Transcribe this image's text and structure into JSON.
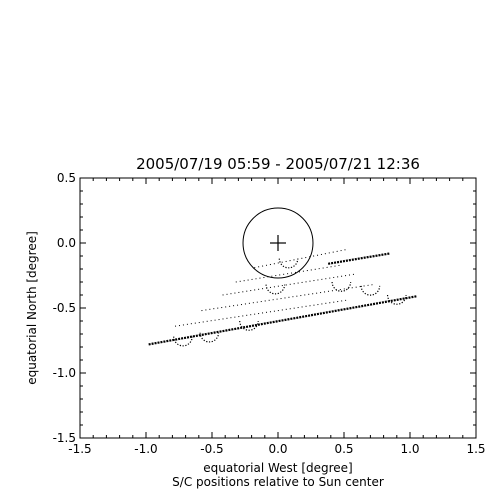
{
  "chart_data": {
    "type": "scatter",
    "title": "2005/07/19 05:59 - 2005/07/21 12:36",
    "xlabel": "equatorial West [degree]",
    "ylabel": "equatorial North [degree]",
    "caption": "S/C positions relative to Sun center",
    "xlim": [
      -1.5,
      1.5
    ],
    "ylim": [
      -1.5,
      0.5
    ],
    "xticks": [
      "-1.5",
      "-1.0",
      "-0.5",
      "0.0",
      "0.5",
      "1.0",
      "1.5"
    ],
    "yticks": [
      "-1.5",
      "-1.0",
      "-0.5",
      "0.0",
      "0.5"
    ],
    "grid": false,
    "sun": {
      "center": [
        0.0,
        0.0
      ],
      "radius": 0.265,
      "marker": "+"
    },
    "series": [
      {
        "style": "dense",
        "x": [
          -0.98,
          1.05
        ],
        "y": [
          -0.78,
          -0.41
        ]
      },
      {
        "style": "dense",
        "x": [
          0.38,
          0.85
        ],
        "y": [
          -0.16,
          -0.08
        ]
      },
      {
        "style": "sparse",
        "x": [
          -0.78,
          0.52
        ],
        "y": [
          -0.64,
          -0.44
        ]
      },
      {
        "style": "sparse",
        "x": [
          -0.58,
          0.72
        ],
        "y": [
          -0.52,
          -0.32
        ]
      },
      {
        "style": "sparse",
        "x": [
          -0.42,
          0.58
        ],
        "y": [
          -0.4,
          -0.24
        ]
      },
      {
        "style": "sparse",
        "x": [
          -0.32,
          0.48
        ],
        "y": [
          -0.3,
          -0.17
        ]
      },
      {
        "style": "sparse",
        "x": [
          -0.18,
          0.52
        ],
        "y": [
          -0.19,
          -0.05
        ]
      },
      {
        "style": "loops",
        "centers": [
          [
            -0.72,
            -0.72
          ],
          [
            -0.52,
            -0.69
          ],
          [
            -0.22,
            -0.6
          ],
          [
            -0.02,
            -0.32
          ],
          [
            0.08,
            -0.12
          ],
          [
            0.48,
            -0.3
          ],
          [
            0.7,
            -0.33
          ],
          [
            0.9,
            -0.4
          ]
        ],
        "radius": 0.07
      }
    ]
  }
}
